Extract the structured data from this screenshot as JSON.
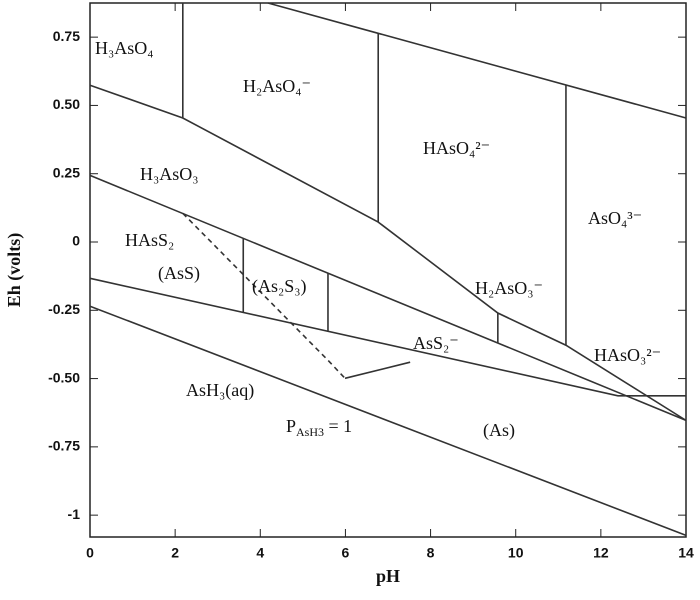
{
  "chart_data": {
    "type": "pourbaix",
    "xlabel": "pH",
    "ylabel": "Eh (volts)",
    "xlim": [
      0,
      14
    ],
    "ylim": [
      -1.08,
      0.875
    ],
    "xticks": [
      0,
      2,
      4,
      6,
      8,
      10,
      12,
      14
    ],
    "yticks": [
      0.75,
      {
        "value": 0.5,
        "label": "0.50"
      },
      0.25,
      0,
      -0.25,
      {
        "value": -0.5,
        "label": "-0.50"
      },
      -0.75,
      -1
    ],
    "color": "#333",
    "series": [
      {
        "x": [
          4.18,
          14
        ],
        "values": [
          0.875,
          0.454
        ]
      },
      {
        "x": [
          0,
          14
        ],
        "values": [
          -0.235,
          -1.074
        ]
      },
      {
        "x": [
          0,
          2.18,
          6.77,
          9.58,
          11.18,
          14
        ],
        "values": [
          0.574,
          0.454,
          0.073,
          -0.26,
          -0.378,
          -0.653
        ]
      },
      {
        "x": [
          2.18,
          2.18
        ],
        "values": [
          0.875,
          0.454
        ]
      },
      {
        "x": [
          6.77,
          6.77
        ],
        "values": [
          0.764,
          0.073
        ]
      },
      {
        "x": [
          11.18,
          11.18
        ],
        "values": [
          0.575,
          -0.378
        ]
      },
      {
        "x": [
          9.58,
          9.58
        ],
        "values": [
          -0.26,
          -0.37
        ]
      },
      {
        "x": [
          0,
          14
        ],
        "values": [
          0.244,
          -0.653
        ]
      },
      {
        "x": [
          0,
          12.4,
          14
        ],
        "values": [
          -0.133,
          -0.563,
          -0.563
        ]
      },
      {
        "x": [
          3.6,
          3.6
        ],
        "values": [
          0.013,
          -0.258
        ]
      },
      {
        "x": [
          5.59,
          5.59
        ],
        "values": [
          -0.114,
          -0.327
        ]
      },
      {
        "x": [
          5.99,
          7.52
        ],
        "values": [
          -0.499,
          -0.44
        ]
      },
      {
        "x": [
          2.18,
          5.59,
          5.99
        ],
        "values": [
          0.105,
          -0.433,
          -0.499
        ],
        "style": "dashed"
      }
    ],
    "regions": [
      "H₃AsO₄",
      "H₂AsO₄⁻",
      "HAsO₄²⁻",
      "H₃AsO₃",
      "AsO₄³⁻",
      "HAsS₂",
      "(AsS)",
      "(As₂S₃)",
      "H₂AsO₃⁻",
      "AsS₂⁻",
      "HAsO₃²⁻",
      "AsH₃(aq)",
      "(As)"
    ],
    "annotation": {
      "base": "P",
      "sub": "AsH3",
      "tail": " = 1"
    }
  }
}
